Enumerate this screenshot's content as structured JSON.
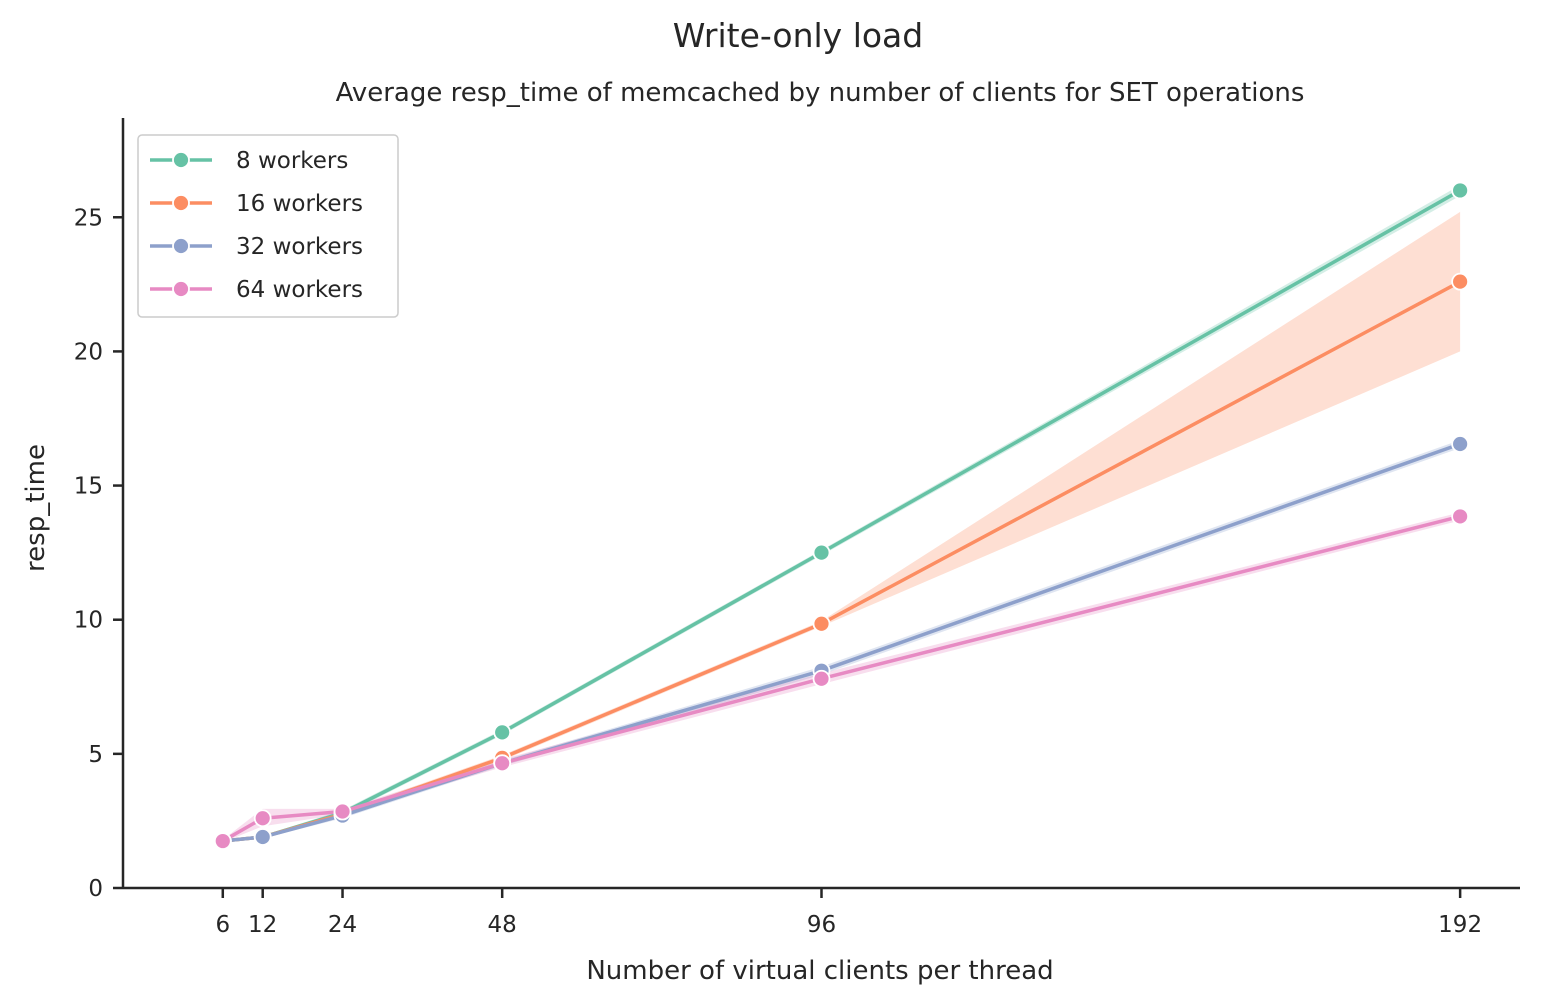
{
  "chart_data": {
    "type": "line",
    "suptitle": "Write-only load",
    "title": "Average resp_time of memcached by number of clients for SET operations",
    "xlabel": "Number of virtual clients per thread",
    "ylabel": "resp_time",
    "x": [
      6,
      12,
      24,
      48,
      96,
      192
    ],
    "xticks": [
      6,
      12,
      24,
      48,
      96,
      192
    ],
    "xlim": [
      -9,
      201
    ],
    "yticks": [
      0,
      5,
      10,
      15,
      20,
      25
    ],
    "ylim": [
      0,
      28.7
    ],
    "grid": false,
    "legend_position": "top-left",
    "series": [
      {
        "name": "8 workers",
        "color": "#66c2a5",
        "values": [
          1.75,
          1.9,
          2.8,
          5.8,
          12.5,
          26.0
        ],
        "ci_lower": [
          1.7,
          1.85,
          2.7,
          5.7,
          12.4,
          25.8
        ],
        "ci_upper": [
          1.8,
          1.95,
          2.9,
          5.9,
          12.6,
          26.2
        ]
      },
      {
        "name": "16 workers",
        "color": "#fc8d62",
        "values": [
          1.75,
          1.9,
          2.75,
          4.85,
          9.85,
          22.6
        ],
        "ci_lower": [
          1.7,
          1.85,
          2.65,
          4.75,
          9.75,
          20.0
        ],
        "ci_upper": [
          1.8,
          1.95,
          2.85,
          4.95,
          9.95,
          25.2
        ]
      },
      {
        "name": "32 workers",
        "color": "#8da0cb",
        "values": [
          1.75,
          1.9,
          2.7,
          4.65,
          8.1,
          16.55
        ],
        "ci_lower": [
          1.7,
          1.85,
          2.6,
          4.55,
          7.95,
          16.4
        ],
        "ci_upper": [
          1.8,
          1.95,
          2.8,
          4.75,
          8.25,
          16.7
        ]
      },
      {
        "name": "64 workers",
        "color": "#e78ac3",
        "values": [
          1.75,
          2.6,
          2.85,
          4.65,
          7.8,
          13.85
        ],
        "ci_lower": [
          1.7,
          2.3,
          2.75,
          4.5,
          7.6,
          13.7
        ],
        "ci_upper": [
          1.8,
          2.95,
          2.95,
          4.8,
          8.0,
          14.0
        ]
      }
    ]
  }
}
